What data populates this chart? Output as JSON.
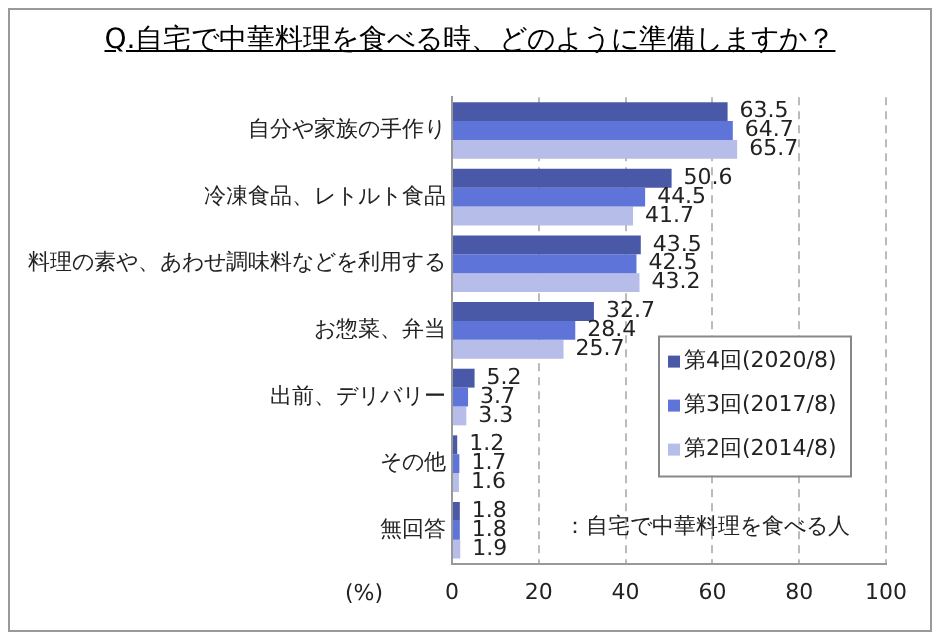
{
  "chart_data": {
    "type": "bar",
    "orientation": "horizontal",
    "title": "Q.自宅で中華料理を食べる時、どのように準備しますか？",
    "xlabel": "(%)",
    "categories": [
      "自分や家族の手作り",
      "冷凍食品、レトルト食品",
      "料理の素や、あわせ調味料などを利用する",
      "お惣菜、弁当",
      "出前、デリバリー",
      "その他",
      "無回答"
    ],
    "series": [
      {
        "name": "第4回(2020/8)",
        "color": "#4a58a8",
        "values": [
          63.5,
          50.6,
          43.5,
          32.7,
          5.2,
          1.2,
          1.8
        ]
      },
      {
        "name": "第3回(2017/8)",
        "color": "#5e74d8",
        "values": [
          64.7,
          44.5,
          42.5,
          28.4,
          3.7,
          1.7,
          1.8
        ]
      },
      {
        "name": "第2回(2014/8)",
        "color": "#b6bde8",
        "values": [
          65.7,
          41.7,
          43.2,
          25.7,
          3.3,
          1.6,
          1.9
        ]
      }
    ],
    "xlim": [
      0,
      100
    ],
    "xticks": [
      0,
      20,
      40,
      60,
      80,
      100
    ],
    "grid": "x",
    "legend": "bottom right",
    "data_labels": true,
    "annotations": [
      "：自宅で中華料理を食べる人"
    ]
  }
}
